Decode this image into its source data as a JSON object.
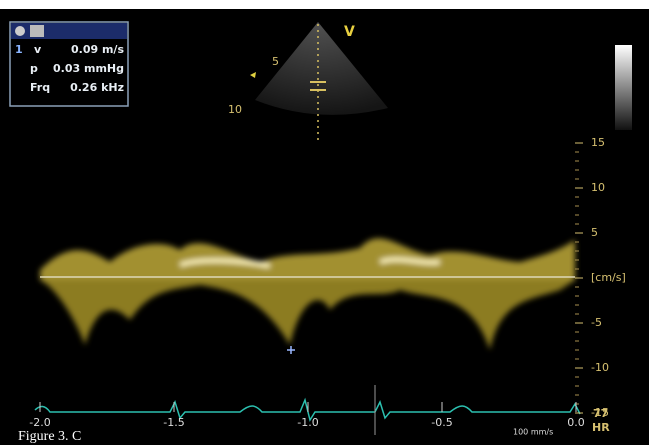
{
  "caption": "Figure 3. C",
  "readout": {
    "index": "1",
    "rows": [
      {
        "label": "v",
        "value": "0.09 m/s"
      },
      {
        "label": "p",
        "value": "0.03 mmHg"
      },
      {
        "label": "Frq",
        "value": "0.26 kHz"
      }
    ]
  },
  "sector": {
    "marker": "V",
    "depths": [
      "5",
      "10"
    ]
  },
  "velocity_scale": {
    "ticks": [
      "15",
      "10",
      "5",
      "[cm/s]",
      "-5",
      "-10",
      "-15"
    ]
  },
  "time_axis": {
    "ticks": [
      "-2.0",
      "-1.5",
      "-1.0",
      "-0.5",
      "0.0"
    ],
    "sweep": "100 mm/s"
  },
  "heart_rate": {
    "value": "77",
    "label": "HR"
  }
}
